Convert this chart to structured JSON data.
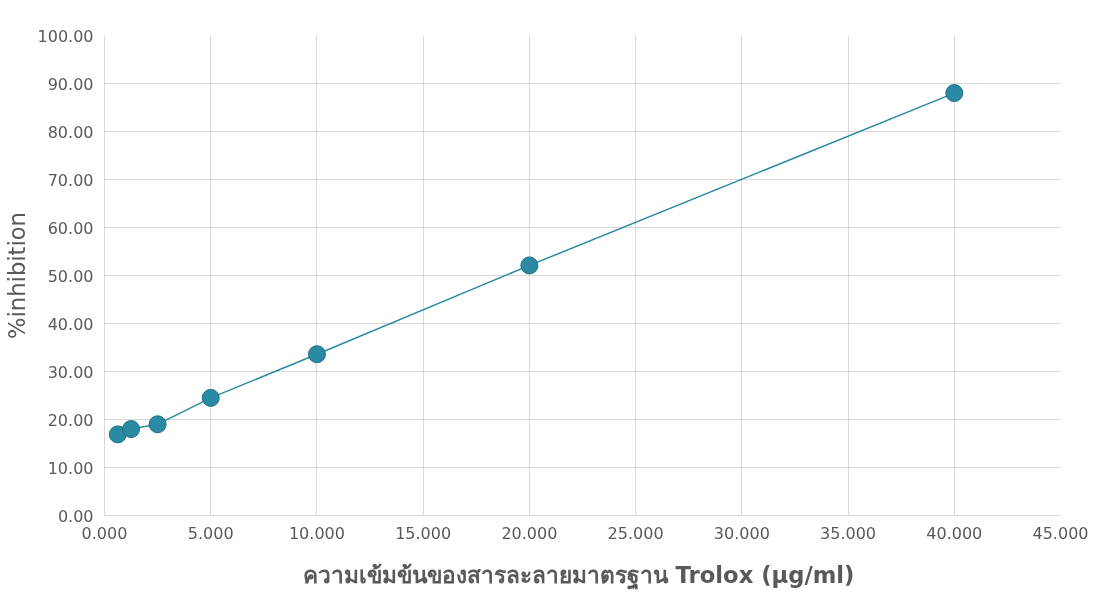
{
  "chart_data": {
    "type": "line",
    "xlabel": "ความเข้มข้นของสารละลายมาตรฐาน Trolox  (µg/ml)",
    "ylabel": "%inhibition",
    "x": [
      0.625,
      1.25,
      2.5,
      5,
      10,
      20,
      40
    ],
    "series": [
      {
        "color": "#2a8aa3",
        "values": [
          16.9,
          18.0,
          19.0,
          24.5,
          33.6,
          52.1,
          88.0
        ]
      }
    ],
    "xlim": [
      0,
      45
    ],
    "ylim": [
      0,
      100
    ],
    "xticks": [
      {
        "value": 0,
        "label": "0.000"
      },
      {
        "value": 5,
        "label": "5.000"
      },
      {
        "value": 10,
        "label": "10.000"
      },
      {
        "value": 15,
        "label": "15.000"
      },
      {
        "value": 20,
        "label": "20.000"
      },
      {
        "value": 25,
        "label": "25.000"
      },
      {
        "value": 30,
        "label": "30.000"
      },
      {
        "value": 35,
        "label": "35.000"
      },
      {
        "value": 40,
        "label": "40.000"
      },
      {
        "value": 45,
        "label": "45.000"
      }
    ],
    "yticks": [
      {
        "value": 0,
        "label": "0.00"
      },
      {
        "value": 10,
        "label": "10.00"
      },
      {
        "value": 20,
        "label": "20.00"
      },
      {
        "value": 30,
        "label": "30.00"
      },
      {
        "value": 40,
        "label": "40.00"
      },
      {
        "value": 50,
        "label": "50.00"
      },
      {
        "value": 60,
        "label": "60.00"
      },
      {
        "value": 70,
        "label": "70.00"
      },
      {
        "value": 80,
        "label": "80.00"
      },
      {
        "value": 90,
        "label": "90.00"
      },
      {
        "value": 100,
        "label": "100.00"
      }
    ],
    "grid": true,
    "marker": "circle",
    "line_style": "solid"
  }
}
